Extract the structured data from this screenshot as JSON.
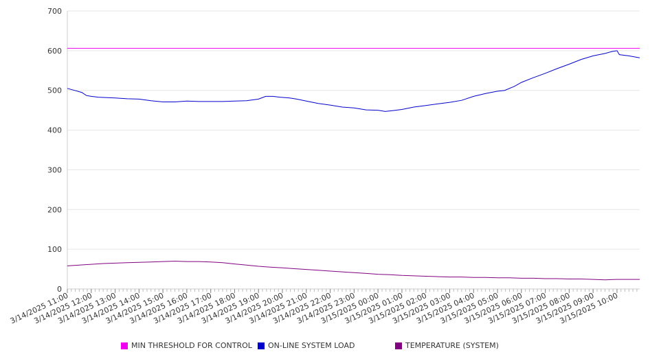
{
  "chart_data": {
    "type": "line",
    "title": "",
    "xlabel": "",
    "ylabel": "",
    "ylim": [
      0,
      700
    ],
    "yticks": [
      "0",
      "100",
      "200",
      "300",
      "400",
      "500",
      "600",
      "700"
    ],
    "xticks": [
      "3/14/2025 11:00",
      "3/14/2025 12:00",
      "3/14/2025 13:00",
      "3/14/2025 14:00",
      "3/14/2025 15:00",
      "3/14/2025 16:00",
      "3/14/2025 17:00",
      "3/14/2025 18:00",
      "3/14/2025 19:00",
      "3/14/2025 20:00",
      "3/14/2025 21:00",
      "3/14/2025 22:00",
      "3/14/2025 23:00",
      "3/15/2025 00:00",
      "3/15/2025 01:00",
      "3/15/2025 02:00",
      "3/15/2025 03:00",
      "3/15/2025 04:00",
      "3/15/2025 05:00",
      "3/15/2025 06:00",
      "3/15/2025 07:00",
      "3/15/2025 08:00",
      "3/15/2025 09:00",
      "3/15/2025 10:00"
    ],
    "xlim": [
      0,
      23.95
    ],
    "grid": true,
    "legend_position": "bottom",
    "series": [
      {
        "name": "MIN THRESHOLD FOR CONTROL",
        "color": "#ee00ee",
        "x": [
          0,
          23.95
        ],
        "y": [
          606,
          606
        ]
      },
      {
        "name": "ON-LINE SYSTEM LOAD",
        "color": "#0000cc",
        "x": [
          0,
          0.3,
          0.6,
          0.8,
          1.0,
          1.3,
          1.6,
          2.0,
          2.5,
          3.0,
          3.5,
          4.0,
          4.5,
          5.0,
          5.5,
          6.0,
          6.5,
          7.0,
          7.5,
          8.0,
          8.3,
          8.6,
          8.9,
          9.3,
          9.6,
          10.0,
          10.5,
          11.0,
          11.5,
          12.0,
          12.5,
          13.0,
          13.3,
          13.6,
          14.0,
          14.5,
          15.0,
          15.5,
          16.0,
          16.5,
          17.0,
          17.5,
          18.0,
          18.3,
          18.7,
          19.0,
          19.5,
          20.0,
          20.5,
          21.0,
          21.5,
          22.0,
          22.5,
          22.8,
          23.0,
          23.1,
          23.5,
          23.95
        ],
        "y": [
          505,
          500,
          495,
          487,
          485,
          483,
          482,
          481,
          479,
          478,
          474,
          471,
          471,
          473,
          472,
          472,
          472,
          473,
          474,
          478,
          485,
          485,
          483,
          481,
          478,
          473,
          467,
          463,
          458,
          456,
          451,
          450,
          447,
          449,
          452,
          458,
          462,
          466,
          470,
          475,
          485,
          492,
          498,
          500,
          510,
          520,
          532,
          543,
          555,
          566,
          578,
          587,
          593,
          598,
          600,
          590,
          587,
          582
        ]
      },
      {
        "name": "TEMPERATURE (SYSTEM)",
        "color": "#800080",
        "x": [
          0,
          0.5,
          1.0,
          1.5,
          2.0,
          2.5,
          3.0,
          3.5,
          4.0,
          4.5,
          5.0,
          5.5,
          6.0,
          6.5,
          7.0,
          7.5,
          8.0,
          8.5,
          9.0,
          9.5,
          10.0,
          10.5,
          11.0,
          11.5,
          12.0,
          12.5,
          13.0,
          13.5,
          14.0,
          14.5,
          15.0,
          15.5,
          16.0,
          16.5,
          17.0,
          17.5,
          18.0,
          18.5,
          19.0,
          19.5,
          20.0,
          20.5,
          21.0,
          21.5,
          22.0,
          22.5,
          23.0,
          23.5,
          23.95
        ],
        "y": [
          58,
          60,
          62,
          64,
          65,
          66,
          67,
          68,
          69,
          70,
          69,
          69,
          68,
          66,
          63,
          60,
          57,
          55,
          53,
          51,
          49,
          47,
          45,
          43,
          41,
          39,
          37,
          36,
          34,
          33,
          32,
          31,
          30,
          30,
          29,
          29,
          28,
          28,
          27,
          27,
          26,
          26,
          25,
          25,
          24,
          23,
          24,
          24,
          24
        ]
      }
    ]
  }
}
